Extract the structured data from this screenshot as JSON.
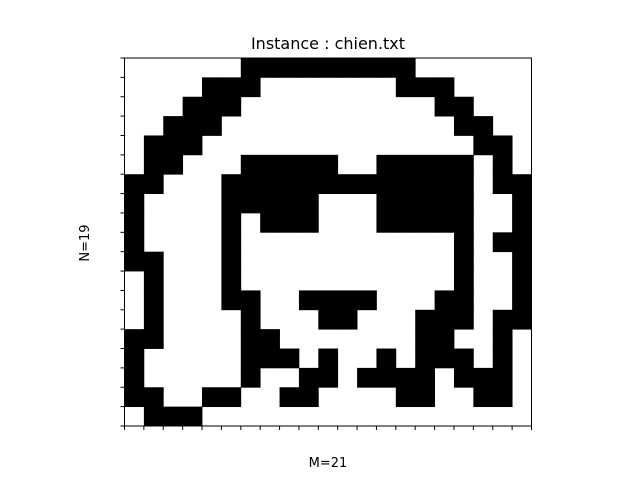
{
  "chart_data": {
    "type": "heatmap",
    "title": "Instance : chien.txt",
    "xlabel": "M=21",
    "ylabel": "N=19",
    "rows": 19,
    "cols": 21,
    "colors": {
      "filled": "#000000",
      "empty": "#ffffff",
      "frame": "#000000"
    },
    "grid": [
      "000000111111111000000",
      "000011100000001110000",
      "000111000000000011000",
      "001110000000000001100",
      "011100000000000000110",
      "011000111110011111010",
      "110001111111111111011",
      "100001111100011111001",
      "100001011100011111001",
      "100001000000000001011",
      "110001000000000001001",
      "010001000000000001001",
      "010001100111100011001",
      "010000100011000111011",
      "110000110000000110010",
      "100000111010010111010",
      "100000100110111101110",
      "110011001100001100110",
      "011100000000000000000"
    ]
  }
}
